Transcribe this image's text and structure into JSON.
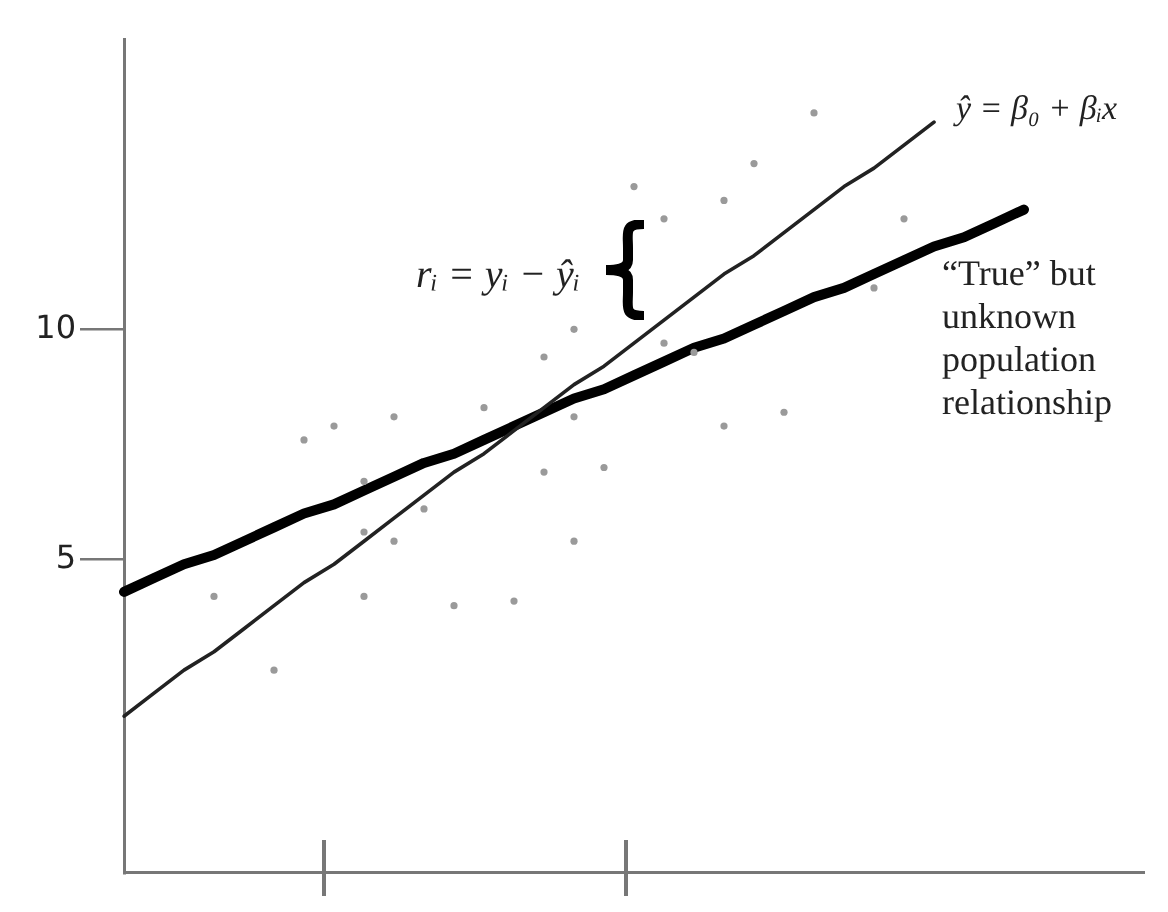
{
  "chart_data": {
    "type": "scatter",
    "categories": [
      null,
      null,
      null,
      null,
      null,
      null,
      null,
      null,
      null,
      null,
      null,
      null,
      null,
      null,
      null,
      null,
      null,
      null,
      null,
      null,
      null,
      null,
      null,
      null,
      null,
      null,
      null,
      null,
      null,
      null,
      null,
      null,
      null,
      null,
      null
    ],
    "ylim": [
      -1.8,
      16.3
    ],
    "yticks": [
      5,
      10
    ],
    "tick_labels": "y",
    "legend": false,
    "series": [
      {
        "marker": "circle",
        "color": "#9a9a9a",
        "values": [
          null,
          null,
          null,
          4.2,
          null,
          2.6,
          7.6,
          7.9,
          6.7,
          8.1,
          6.1,
          4.0,
          8.3,
          4.1,
          9.4,
          10.0,
          7.0,
          13.1,
          12.4,
          9.5,
          12.8,
          13.6,
          8.2,
          14.7,
          null,
          10.9,
          12.4,
          null,
          null,
          null,
          null,
          null,
          null,
          null,
          null
        ]
      },
      {
        "marker": "circle",
        "color": "#9a9a9a",
        "values": [
          null,
          null,
          null,
          null,
          null,
          null,
          null,
          null,
          5.6,
          5.4,
          null,
          null,
          null,
          null,
          6.9,
          8.1,
          null,
          null,
          9.7,
          null,
          7.9,
          null,
          null,
          null,
          null,
          null,
          null,
          null,
          null,
          null,
          null,
          null,
          null,
          null,
          null
        ]
      },
      {
        "marker": "circle",
        "color": "#9a9a9a",
        "values": [
          null,
          null,
          null,
          null,
          null,
          null,
          null,
          null,
          4.2,
          null,
          null,
          null,
          null,
          null,
          null,
          5.4,
          null,
          null,
          null,
          null,
          null,
          null,
          null,
          null,
          null,
          null,
          null,
          null,
          null,
          null,
          null,
          null,
          null,
          null,
          null
        ]
      },
      {
        "type": "line",
        "marker": "none",
        "color": "#222222",
        "values": [
          1.6,
          2.1,
          2.6,
          3.0,
          3.5,
          4.0,
          4.5,
          4.9,
          5.4,
          5.9,
          6.4,
          6.9,
          7.3,
          7.8,
          8.3,
          8.8,
          9.2,
          9.7,
          10.2,
          10.7,
          11.2,
          11.6,
          12.1,
          12.6,
          13.1,
          13.5,
          14.0,
          14.5,
          null,
          null,
          null,
          null,
          null,
          null,
          null
        ]
      },
      {
        "type": "line",
        "marker": "none",
        "color": "#000000",
        "values": [
          4.3,
          4.6,
          4.9,
          5.1,
          5.4,
          5.7,
          6.0,
          6.2,
          6.5,
          6.8,
          7.1,
          7.3,
          7.6,
          7.9,
          8.2,
          8.5,
          8.7,
          9.0,
          9.3,
          9.6,
          9.8,
          10.1,
          10.4,
          10.7,
          10.9,
          11.2,
          11.5,
          11.8,
          12.0,
          12.3,
          12.6,
          null,
          null,
          null,
          null
        ]
      }
    ],
    "annotations": [
      "ŷ = β₀ + βᵢx",
      "“True” but\nunknown\npopulation\nrelationship",
      "rᵢ = yᵢ − ŷᵢ"
    ]
  }
}
